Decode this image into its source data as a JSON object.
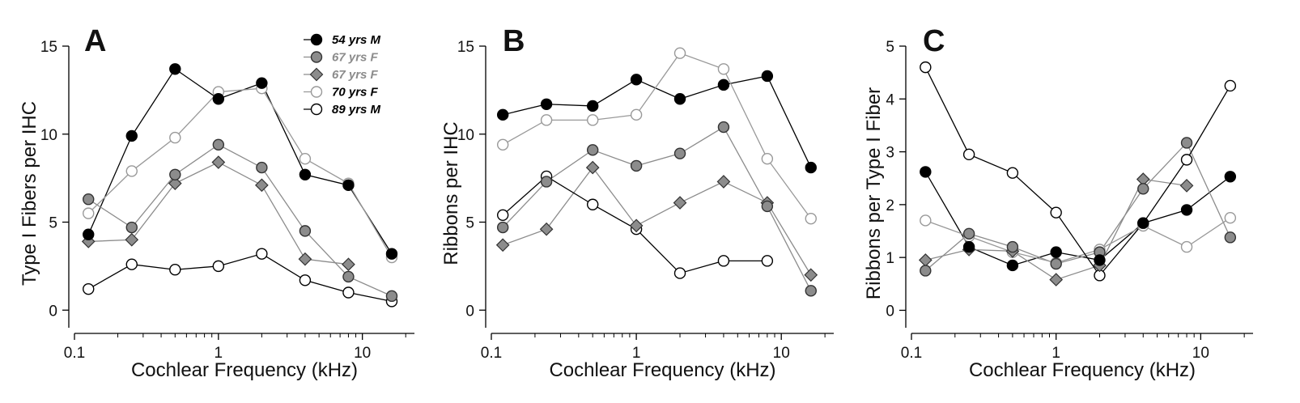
{
  "figure": {
    "background": "#ffffff"
  },
  "series_styles": [
    {
      "name": "54 yrs M",
      "marker": "circle",
      "fill": "#000000",
      "stroke": "#000000",
      "line": "#000000",
      "label_color": "#000000"
    },
    {
      "name": "67 yrs F",
      "marker": "circle",
      "fill": "#8c8c8c",
      "stroke": "#333333",
      "line": "#8c8c8c",
      "label_color": "#8c8c8c"
    },
    {
      "name": "67 yrs F",
      "marker": "diamond",
      "fill": "#8c8c8c",
      "stroke": "#333333",
      "line": "#8c8c8c",
      "label_color": "#8c8c8c"
    },
    {
      "name": "70 yrs F",
      "marker": "circle",
      "fill": "#ffffff",
      "stroke": "#999999",
      "line": "#999999",
      "label_color": "#000000"
    },
    {
      "name": "89 yrs M",
      "marker": "circle",
      "fill": "#ffffff",
      "stroke": "#000000",
      "line": "#000000",
      "label_color": "#000000"
    }
  ],
  "chart_data": [
    {
      "panel": "A",
      "type": "line",
      "xscale": "log",
      "xlabel": "Cochlear Frequency (kHz)",
      "ylabel": "Type I Fibers per IHC",
      "xlim": [
        0.1,
        23
      ],
      "ylim": [
        -1,
        15
      ],
      "xticks": [
        0.1,
        1,
        10
      ],
      "xtick_labels": [
        "0.1",
        "1",
        "10"
      ],
      "yticks": [
        0,
        5,
        10,
        15
      ],
      "ytick_labels": [
        "0",
        "5",
        "10",
        "15"
      ],
      "legend": {
        "position": "top-right",
        "entries": [
          "54 yrs M",
          "67 yrs F",
          "67 yrs F",
          "70 yrs F",
          "89 yrs M"
        ]
      },
      "series": [
        {
          "name": "54 yrs M",
          "x": [
            0.125,
            0.25,
            0.5,
            1,
            2,
            4,
            8,
            16
          ],
          "values": [
            4.3,
            9.9,
            13.7,
            12.0,
            12.9,
            7.7,
            7.1,
            3.2
          ]
        },
        {
          "name": "67 yrs F",
          "x": [
            0.125,
            0.25,
            0.5,
            1,
            2,
            4,
            8,
            16
          ],
          "values": [
            6.3,
            4.7,
            7.7,
            9.4,
            8.1,
            4.5,
            1.9,
            0.8
          ]
        },
        {
          "name": "67 yrs F",
          "x": [
            0.125,
            0.25,
            0.5,
            1,
            2,
            4,
            8
          ],
          "values": [
            3.9,
            4.0,
            7.2,
            8.4,
            7.1,
            2.9,
            2.6
          ]
        },
        {
          "name": "70 yrs F",
          "x": [
            0.125,
            0.25,
            0.5,
            1,
            2,
            4,
            8,
            16
          ],
          "values": [
            5.5,
            7.9,
            9.8,
            12.4,
            12.6,
            8.6,
            7.2,
            3.0
          ]
        },
        {
          "name": "89 yrs M",
          "x": [
            0.125,
            0.25,
            0.5,
            1,
            2,
            4,
            8,
            16
          ],
          "values": [
            1.2,
            2.6,
            2.3,
            2.5,
            3.2,
            1.7,
            1.0,
            0.5
          ]
        }
      ]
    },
    {
      "panel": "B",
      "type": "line",
      "xscale": "log",
      "xlabel": "Cochlear Frequency (kHz)",
      "ylabel": "Ribbons per IHC",
      "xlim": [
        0.1,
        23
      ],
      "ylim": [
        -1,
        15
      ],
      "xticks": [
        0.1,
        1,
        10
      ],
      "xtick_labels": [
        "0.1",
        "1",
        "10"
      ],
      "yticks": [
        0,
        5,
        10,
        15
      ],
      "ytick_labels": [
        "0",
        "5",
        "10",
        "15"
      ],
      "series": [
        {
          "name": "54 yrs M",
          "x": [
            0.12,
            0.24,
            0.5,
            1,
            2,
            4,
            8,
            16
          ],
          "values": [
            11.1,
            11.7,
            11.6,
            13.1,
            12.0,
            12.8,
            13.3,
            8.1
          ]
        },
        {
          "name": "67 yrs F",
          "x": [
            0.12,
            0.24,
            0.5,
            1,
            2,
            4,
            8,
            16
          ],
          "values": [
            4.7,
            7.3,
            9.1,
            8.2,
            8.9,
            10.4,
            5.9,
            1.1
          ]
        },
        {
          "name": "67 yrs F",
          "x": [
            0.12,
            0.24,
            0.5,
            1,
            2,
            4,
            8,
            16
          ],
          "values": [
            3.7,
            4.6,
            8.1,
            4.8,
            6.1,
            7.3,
            6.1,
            2.0
          ]
        },
        {
          "name": "70 yrs F",
          "x": [
            0.12,
            0.24,
            0.5,
            1,
            2,
            4,
            8,
            16
          ],
          "values": [
            9.4,
            10.8,
            10.8,
            11.1,
            14.6,
            13.7,
            8.6,
            5.2
          ]
        },
        {
          "name": "89 yrs M",
          "x": [
            0.12,
            0.24,
            0.5,
            1,
            2,
            4,
            8
          ],
          "values": [
            5.4,
            7.6,
            6.0,
            4.6,
            2.1,
            2.8,
            2.8
          ]
        }
      ]
    },
    {
      "panel": "C",
      "type": "line",
      "xscale": "log",
      "xlabel": "Cochlear Frequency (kHz)",
      "ylabel": "Ribbons per Type I Fiber",
      "xlim": [
        0.1,
        23
      ],
      "ylim": [
        -0.33,
        5
      ],
      "xticks": [
        0.1,
        1,
        10
      ],
      "xtick_labels": [
        "0.1",
        "1",
        "10"
      ],
      "yticks": [
        0,
        1,
        2,
        3,
        4,
        5
      ],
      "ytick_labels": [
        "0",
        "1",
        "2",
        "3",
        "4",
        "5"
      ],
      "series": [
        {
          "name": "54 yrs M",
          "x": [
            0.125,
            0.25,
            0.5,
            1,
            2,
            4,
            8,
            16
          ],
          "values": [
            2.62,
            1.2,
            0.85,
            1.1,
            0.95,
            1.65,
            1.9,
            2.53
          ]
        },
        {
          "name": "67 yrs F",
          "x": [
            0.125,
            0.25,
            0.5,
            1,
            2,
            4,
            8,
            16
          ],
          "values": [
            0.75,
            1.45,
            1.2,
            0.88,
            1.1,
            2.3,
            3.17,
            1.38
          ]
        },
        {
          "name": "67 yrs F",
          "x": [
            0.125,
            0.25,
            0.5,
            1,
            2,
            4,
            8
          ],
          "values": [
            0.95,
            1.15,
            1.12,
            0.58,
            0.85,
            2.48,
            2.36
          ]
        },
        {
          "name": "70 yrs F",
          "x": [
            0.125,
            0.25,
            0.5,
            1,
            2,
            4,
            8,
            16
          ],
          "values": [
            1.7,
            1.4,
            1.1,
            0.9,
            1.15,
            1.6,
            1.2,
            1.75
          ]
        },
        {
          "name": "89 yrs M",
          "x": [
            0.125,
            0.25,
            0.5,
            1,
            2,
            4,
            8,
            16
          ],
          "values": [
            4.6,
            2.95,
            2.6,
            1.85,
            0.66,
            1.65,
            2.85,
            4.25
          ]
        }
      ]
    }
  ]
}
